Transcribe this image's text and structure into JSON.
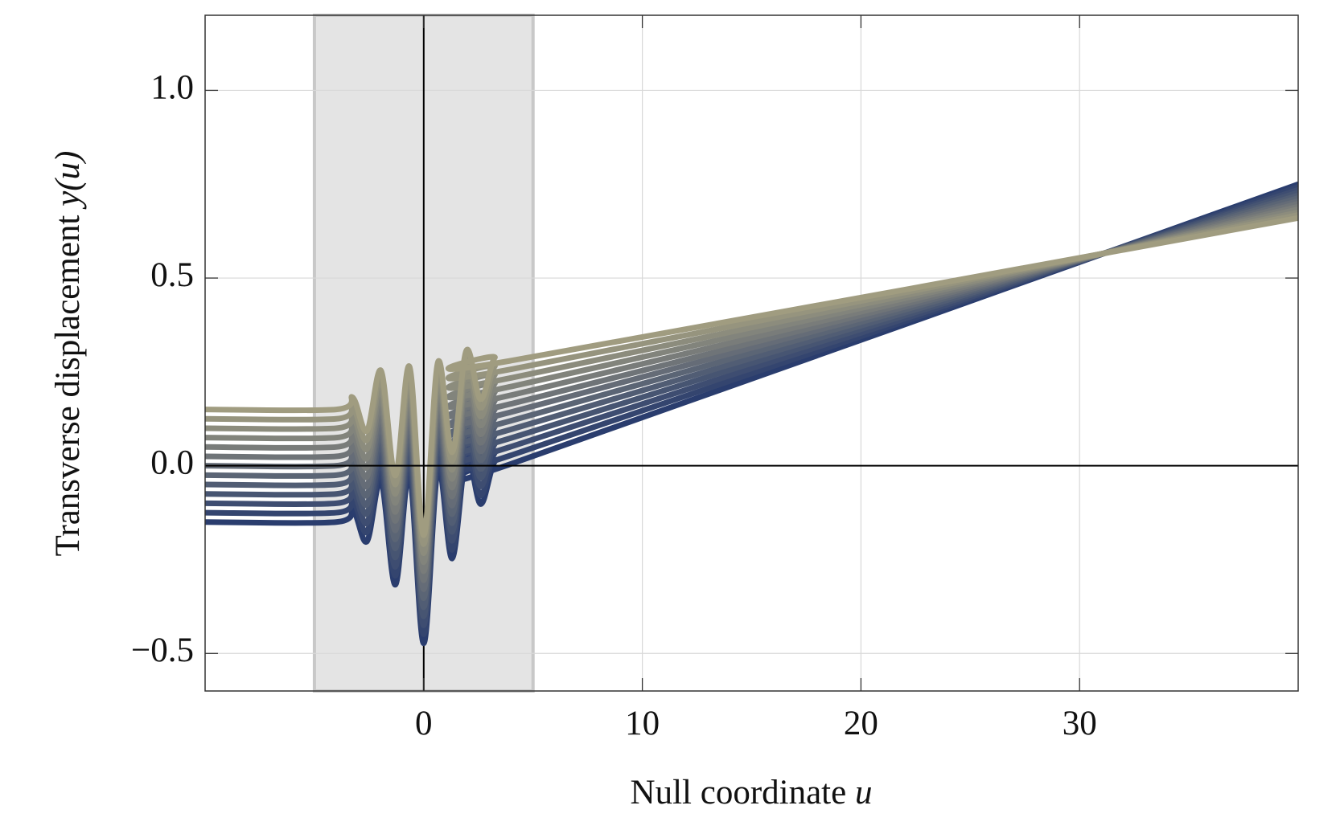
{
  "chart_data": {
    "type": "line",
    "xlabel": {
      "text": "Null coordinate ",
      "math": "u"
    },
    "ylabel": {
      "text": "Transverse displacement ",
      "math": "y(u)"
    },
    "x": [
      -10,
      -4,
      -3.25,
      -2.6,
      -1.95,
      -1.3,
      -0.65,
      0,
      0.65,
      1.3,
      1.95,
      2.6,
      3.25,
      4,
      40
    ],
    "series": [
      {
        "color": "#a09c80",
        "values": [
          0.15,
          0.15,
          0.182,
          0.093,
          0.253,
          -0.026,
          0.264,
          -0.185,
          0.276,
          0.036,
          0.307,
          0.177,
          0.288,
          0.28,
          0.66
        ]
      },
      {
        "color": "#96947e",
        "values": [
          0.125,
          0.125,
          0.157,
          0.068,
          0.229,
          -0.05,
          0.24,
          -0.209,
          0.252,
          0.012,
          0.284,
          0.154,
          0.265,
          0.257,
          0.668
        ]
      },
      {
        "color": "#8c8c7d",
        "values": [
          0.1,
          0.1,
          0.132,
          0.044,
          0.204,
          -0.075,
          0.216,
          -0.233,
          0.228,
          -0.011,
          0.26,
          0.131,
          0.242,
          0.234,
          0.675
        ]
      },
      {
        "color": "#82847c",
        "values": [
          0.075,
          0.075,
          0.108,
          0.019,
          0.18,
          -0.099,
          0.192,
          -0.257,
          0.205,
          -0.035,
          0.237,
          0.107,
          0.219,
          0.211,
          0.683
        ]
      },
      {
        "color": "#797c7a",
        "values": [
          0.05,
          0.05,
          0.083,
          -0.005,
          0.155,
          -0.123,
          0.168,
          -0.281,
          0.181,
          -0.058,
          0.213,
          0.084,
          0.196,
          0.188,
          0.69
        ]
      },
      {
        "color": "#6f7478",
        "values": [
          0.025,
          0.025,
          0.058,
          -0.03,
          0.131,
          -0.147,
          0.144,
          -0.305,
          0.157,
          -0.082,
          0.19,
          0.061,
          0.173,
          0.165,
          0.698
        ]
      },
      {
        "color": "#656c77",
        "values": [
          0,
          0,
          0.033,
          -0.055,
          0.106,
          -0.172,
          0.12,
          -0.329,
          0.133,
          -0.106,
          0.167,
          0.038,
          0.15,
          0.143,
          0.705
        ]
      },
      {
        "color": "#5b6575",
        "values": [
          -0.025,
          -0.025,
          0.008,
          -0.079,
          0.082,
          -0.196,
          0.096,
          -0.353,
          0.109,
          -0.129,
          0.143,
          0.014,
          0.127,
          0.12,
          0.713
        ]
      },
      {
        "color": "#515d74",
        "values": [
          -0.05,
          -0.05,
          -0.017,
          -0.104,
          0.057,
          -0.22,
          0.072,
          -0.377,
          0.086,
          -0.153,
          0.12,
          -0.009,
          0.104,
          0.097,
          0.72
        ]
      },
      {
        "color": "#475572",
        "values": [
          -0.075,
          -0.075,
          -0.042,
          -0.128,
          0.033,
          -0.244,
          0.048,
          -0.401,
          0.062,
          -0.176,
          0.096,
          -0.032,
          0.081,
          0.074,
          0.728
        ]
      },
      {
        "color": "#3e4d71",
        "values": [
          -0.1,
          -0.1,
          -0.066,
          -0.153,
          0.008,
          -0.269,
          0.023,
          -0.425,
          0.038,
          -0.2,
          0.073,
          -0.055,
          0.058,
          0.051,
          0.735
        ]
      },
      {
        "color": "#34456f",
        "values": [
          -0.125,
          -0.125,
          -0.091,
          -0.177,
          -0.016,
          -0.293,
          -0.001,
          -0.449,
          0.014,
          -0.224,
          0.05,
          -0.079,
          0.034,
          0.028,
          0.743
        ]
      },
      {
        "color": "#2a3d6e",
        "values": [
          -0.15,
          -0.15,
          -0.116,
          -0.202,
          -0.041,
          -0.317,
          -0.025,
          -0.473,
          -0.01,
          -0.247,
          0.026,
          -0.102,
          0.011,
          0.005,
          0.75
        ]
      }
    ],
    "shaded_xrange": [
      -5,
      5
    ],
    "xlim": [
      -10,
      40
    ],
    "ylim": [
      -0.6,
      1.2
    ],
    "xticks": [
      0,
      10,
      20,
      30
    ],
    "yticks": [
      {
        "value": -0.5,
        "label": "−0.5"
      },
      {
        "value": 0,
        "label": "0.0"
      },
      0.5,
      {
        "value": 1,
        "label": "1.0"
      }
    ],
    "grid": true
  }
}
